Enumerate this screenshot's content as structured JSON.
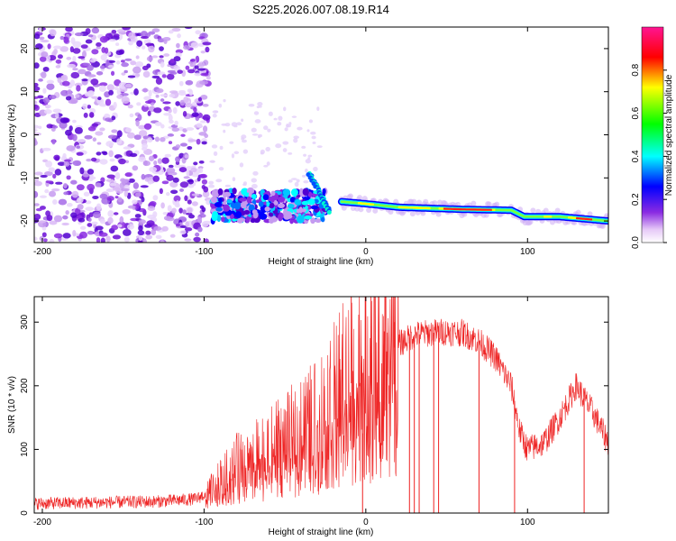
{
  "title": "S225.2026.007.08.19.R14",
  "chart_data": [
    {
      "type": "heatmap",
      "xlabel": "Height of straight line (km)",
      "ylabel": "Frequency (Hz)",
      "xlim": [
        -205,
        150
      ],
      "ylim": [
        -25,
        25
      ],
      "xticks": [
        -200,
        -100,
        0,
        100
      ],
      "yticks": [
        20,
        10,
        0,
        -10,
        -20
      ],
      "colorbar": {
        "label": "Normalized spectral amplitude",
        "range": [
          0,
          1
        ],
        "ticks": [
          0.0,
          0.2,
          0.4,
          0.6,
          0.8
        ],
        "colors": [
          "#ffffff",
          "#8a2be2",
          "#0000ff",
          "#00ffff",
          "#00ff00",
          "#ffff00",
          "#ff0000",
          "#ff1493"
        ]
      },
      "features": {
        "noise_region": {
          "x_range": [
            -205,
            -97
          ],
          "freq_range": [
            -25,
            25
          ],
          "amplitude": 0.15
        },
        "onset_band": {
          "x_range": [
            -95,
            -25
          ],
          "freq_range": [
            -20,
            -13
          ],
          "amplitude": 0.3
        },
        "rising_ridge": {
          "x": [
            -35,
            -22
          ],
          "freq": [
            -9,
            -18
          ]
        },
        "tone_line": [
          {
            "x": -15,
            "freq": -15.5
          },
          {
            "x": 0,
            "freq": -16
          },
          {
            "x": 20,
            "freq": -16.8
          },
          {
            "x": 60,
            "freq": -17.3
          },
          {
            "x": 90,
            "freq": -17.5
          },
          {
            "x": 98,
            "freq": -19.0
          },
          {
            "x": 120,
            "freq": -19.0
          },
          {
            "x": 150,
            "freq": -20.0
          }
        ]
      }
    },
    {
      "type": "line",
      "xlabel": "Height of straight line (km)",
      "ylabel": "SNR (10 * v/v)",
      "xlim": [
        -205,
        150
      ],
      "ylim": [
        0,
        340
      ],
      "xticks": [
        -200,
        -100,
        0,
        100
      ],
      "yticks": [
        0,
        100,
        200,
        300
      ],
      "color": "#ee2222",
      "envelope": {
        "x": [
          -205,
          -130,
          -105,
          -95,
          -80,
          -70,
          -50,
          -30,
          -15,
          0,
          10,
          20,
          30,
          40,
          50,
          60,
          70,
          80,
          90,
          95,
          100,
          110,
          120,
          130,
          140,
          150
        ],
        "y": [
          15,
          18,
          22,
          35,
          70,
          80,
          105,
          140,
          190,
          225,
          240,
          265,
          280,
          283,
          285,
          283,
          270,
          245,
          200,
          130,
          100,
          110,
          150,
          200,
          160,
          110
        ]
      },
      "spikes": [
        {
          "x": -9,
          "y": 340
        },
        {
          "x": -2,
          "y": 0
        },
        {
          "x": 18,
          "y": 300
        },
        {
          "x": 27,
          "y": 0
        },
        {
          "x": 30,
          "y": 0
        },
        {
          "x": 33,
          "y": 0
        },
        {
          "x": 42,
          "y": 0
        },
        {
          "x": 45,
          "y": 0
        },
        {
          "x": 70,
          "y": 0
        },
        {
          "x": 92,
          "y": 0
        },
        {
          "x": 135,
          "y": 0
        }
      ]
    }
  ]
}
